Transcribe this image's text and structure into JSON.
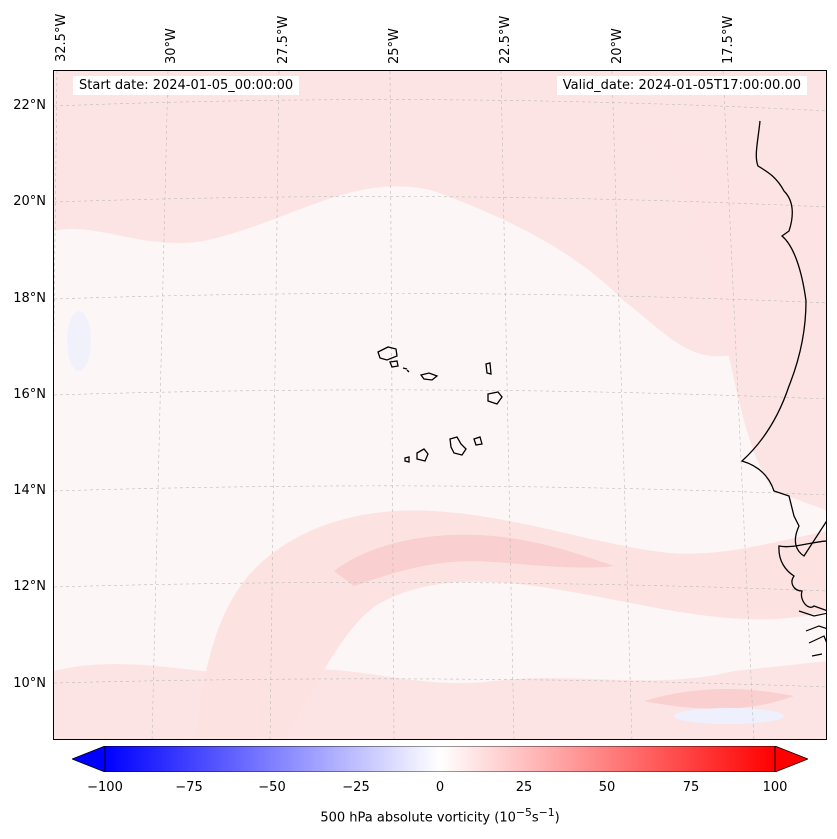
{
  "title_left": "Start date: 2024-01-05_00:00:00",
  "title_right": "Valid_date: 2024-01-05T17:00:00.00",
  "longitude_labels": [
    "32.5°W",
    "30°W",
    "27.5°W",
    "25°W",
    "22.5°W",
    "20°W",
    "17.5°W"
  ],
  "latitude_labels": [
    "22°N",
    "20°N",
    "18°N",
    "16°N",
    "14°N",
    "12°N",
    "10°N"
  ],
  "colorbar": {
    "ticks": [
      "−100",
      "−75",
      "−50",
      "−25",
      "0",
      "25",
      "50",
      "75",
      "100"
    ],
    "label": "500 hPa absolute vorticity (10",
    "label_exp1": "−5",
    "label_mid": "s",
    "label_exp2": "−1",
    "label_end": ")",
    "min_color": "#0000ff",
    "mid_color": "#ffffff",
    "max_color": "#ff0000"
  },
  "colors": {
    "coast": "#000000",
    "grid": "#bbbbbb",
    "weak_positive": "#fde2e2",
    "moderate_positive": "#f9cfcf",
    "weak_negative": "#eef0fd"
  }
}
